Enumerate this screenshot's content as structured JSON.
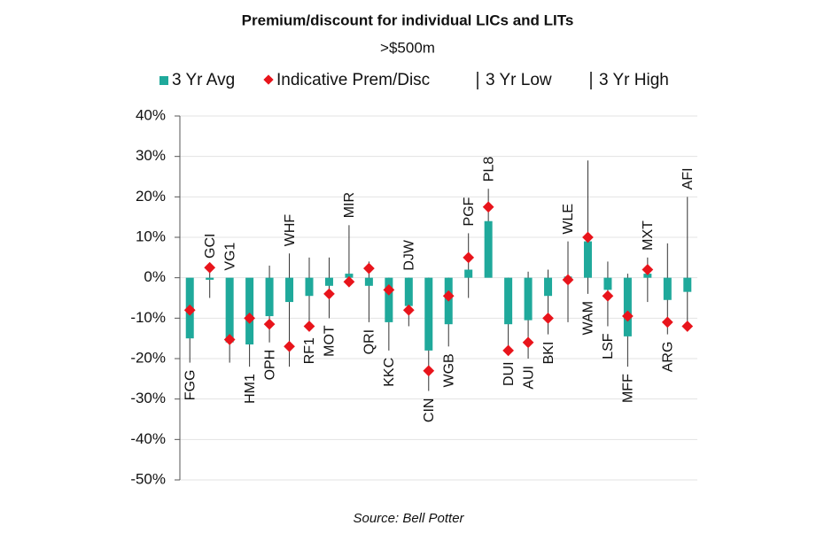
{
  "chart_data": {
    "type": "bar",
    "title": "Premium/discount for individual LICs and LITs",
    "subtitle": ">$500m",
    "source": "Source: Bell Potter",
    "categories": [
      "FGG",
      "GCI",
      "VG1",
      "HM1",
      "OPH",
      "WHF",
      "RF1",
      "MOT",
      "MIR",
      "QRI",
      "KKC",
      "DJW",
      "CIN",
      "WGB",
      "PGF",
      "PL8",
      "DUI",
      "AUI",
      "BKI",
      "WLE",
      "WAM",
      "LSF",
      "MFF",
      "MXT",
      "ARG",
      "AFI"
    ],
    "series": [
      {
        "name": "3 Yr Avg",
        "color": "#1fa99b",
        "values": [
          -15,
          -0.5,
          -16,
          -16.5,
          -9.5,
          -6,
          -4.5,
          -2,
          1,
          -2,
          -11,
          -7,
          -18,
          -11.5,
          2,
          14,
          -11.5,
          -10.5,
          -4.5,
          0.3,
          9,
          -3,
          -14.5,
          1,
          -5.5,
          -3.5
        ]
      },
      {
        "name": "Indicative Prem/Disc",
        "color": "#e8141b",
        "values": [
          -8,
          2.5,
          -15.3,
          -10,
          -11.5,
          -17,
          -12,
          -4,
          -1,
          2.3,
          -3,
          -8,
          -23,
          -4.5,
          5,
          17.5,
          -18,
          -16,
          -10,
          -0.5,
          10,
          -4.5,
          -9.5,
          2,
          -11,
          -12
        ]
      },
      {
        "name": "3 Yr Low",
        "color": "#333333",
        "values": [
          -21,
          -5,
          -21,
          -22,
          -16,
          -22,
          -13,
          -10,
          -2,
          -11,
          -18,
          -12,
          -28,
          -17,
          -5,
          6,
          -19,
          -20,
          -14,
          -11,
          -4,
          -12,
          -22,
          -6,
          -14,
          -13
        ]
      },
      {
        "name": "3 Yr High",
        "color": "#333333",
        "values": [
          -6,
          3,
          -5,
          -3,
          3,
          6,
          5,
          5,
          13,
          4,
          0,
          0,
          0,
          0,
          11,
          22,
          0,
          1.5,
          2,
          9,
          29,
          4,
          1,
          5,
          8.5,
          20
        ]
      }
    ],
    "ylim": [
      -50,
      40
    ],
    "yticks": [
      {
        "value": -50,
        "label": "-50%"
      },
      {
        "value": -40,
        "label": "-40%"
      },
      {
        "value": -30,
        "label": "-30%"
      },
      {
        "value": -20,
        "label": "-20%"
      },
      {
        "value": -10,
        "label": "-10%"
      },
      {
        "value": 0,
        "label": "0%"
      },
      {
        "value": 10,
        "label": "10%"
      },
      {
        "value": 20,
        "label": "20%"
      },
      {
        "value": 30,
        "label": "30%"
      },
      {
        "value": 40,
        "label": "40%"
      }
    ],
    "grid": true
  }
}
